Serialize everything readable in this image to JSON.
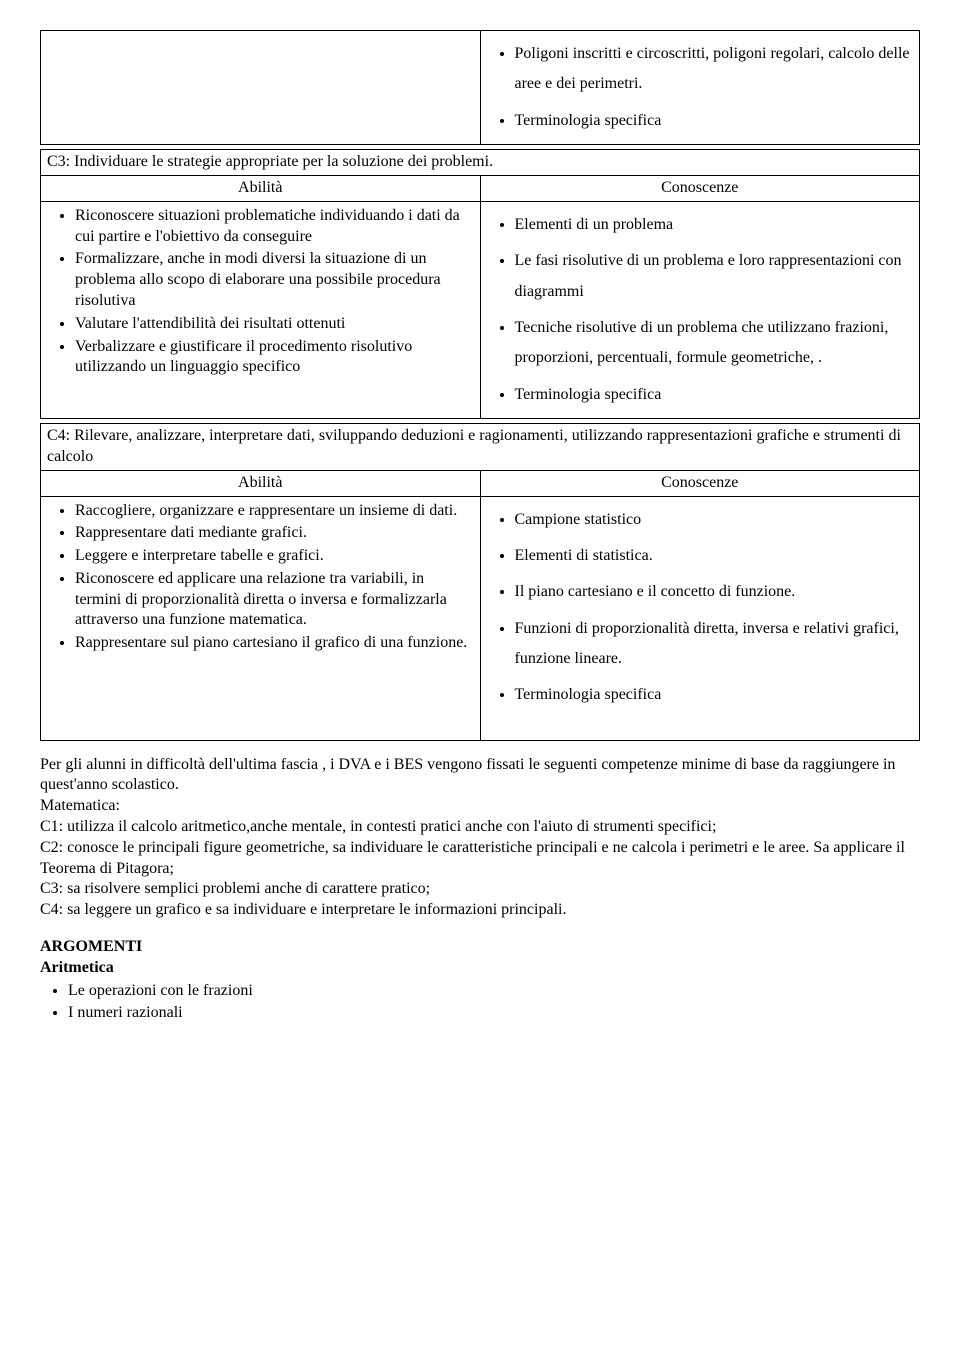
{
  "top_table_right": {
    "items": [
      "Poligoni inscritti e circoscritti, poligoni regolari, calcolo delle aree e dei perimetri.",
      "Terminologia specifica"
    ]
  },
  "c3": {
    "title": "C3: Individuare le strategie appropriate per la soluzione dei problemi.",
    "header_left": "Abilità",
    "header_right": "Conoscenze",
    "left_items": [
      "Riconoscere situazioni problematiche individuando i dati da cui partire e l'obiettivo da conseguire",
      "Formalizzare, anche in modi diversi la situazione di un problema allo scopo di elaborare una possibile procedura risolutiva",
      "Valutare l'attendibilità dei risultati ottenuti",
      "Verbalizzare e giustificare il procedimento risolutivo utilizzando un linguaggio specifico"
    ],
    "right_items": [
      "Elementi di un problema",
      "Le fasi risolutive di un problema e loro rappresentazioni con diagrammi",
      "Tecniche risolutive di un problema che utilizzano frazioni, proporzioni, percentuali, formule geometriche, .",
      "Terminologia specifica"
    ]
  },
  "c4": {
    "title": "C4: Rilevare, analizzare, interpretare dati, sviluppando deduzioni e ragionamenti, utilizzando rappresentazioni grafiche e strumenti di calcolo",
    "header_left": "Abilità",
    "header_right": "Conoscenze",
    "left_items": [
      "Raccogliere, organizzare e rappresentare un insieme di dati.",
      "Rappresentare dati mediante grafici.",
      "Leggere e interpretare tabelle e grafici.",
      "Riconoscere ed applicare una relazione tra variabili, in termini di proporzionalità diretta o inversa e formalizzarla attraverso una funzione matematica.",
      "Rappresentare sul piano cartesiano il grafico di una funzione."
    ],
    "right_items": [
      "Campione statistico",
      "Elementi di statistica.",
      "Il piano cartesiano e il concetto di funzione.",
      "Funzioni di proporzionalità diretta, inversa e relativi grafici, funzione lineare.",
      "Terminologia specifica"
    ]
  },
  "paragraph": {
    "p1": "Per gli alunni in difficoltà dell'ultima fascia , i DVA e i BES vengono fissati le seguenti competenze minime di base da raggiungere in quest'anno scolastico.",
    "p2": "Matematica:",
    "p3": "C1: utilizza il calcolo aritmetico,anche mentale, in contesti pratici anche con l'aiuto di strumenti specifici;",
    "p4": "C2: conosce le principali figure geometriche, sa individuare le caratteristiche principali e ne calcola i perimetri e le aree. Sa applicare il Teorema di Pitagora;",
    "p5": "C3: sa risolvere semplici problemi anche di carattere pratico;",
    "p6": "C4: sa leggere un grafico e sa individuare e interpretare le informazioni principali."
  },
  "argomenti": {
    "heading": "ARGOMENTI",
    "sub": "Aritmetica",
    "items": [
      "Le operazioni con le frazioni",
      "I numeri razionali"
    ]
  }
}
